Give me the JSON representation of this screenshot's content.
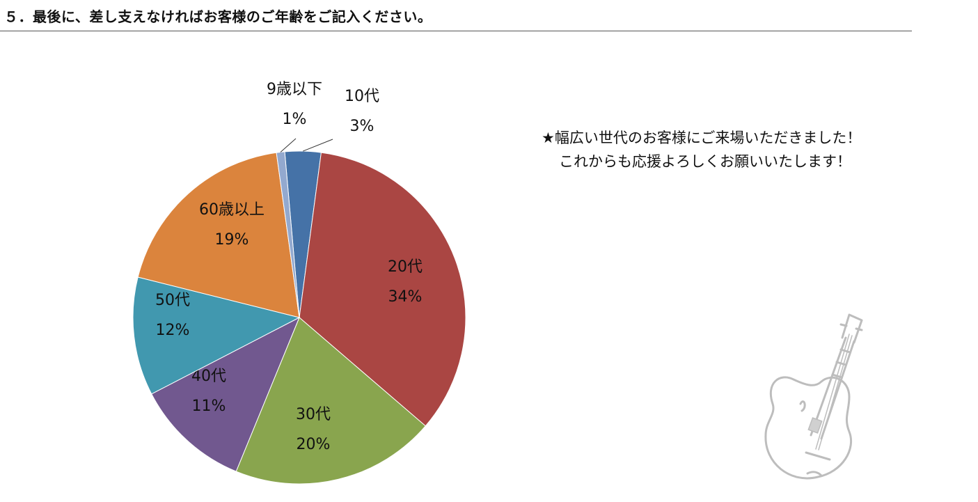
{
  "header": {
    "title": "５．最後に、差し支えなければお客様のご年齢をご記入ください。"
  },
  "note": {
    "line1": "★幅広い世代のお客様にご来場いただきました！",
    "line2": "これからも応援よろしくお願いいたします！"
  },
  "chart_data": {
    "type": "pie",
    "title": "",
    "start_angle_deg": -5.04,
    "direction": "clockwise",
    "slices": [
      {
        "label": "10代",
        "value_label": "3%",
        "value": 3.5,
        "color": "#4572A7"
      },
      {
        "label": "20代",
        "value_label": "34%",
        "value": 34.2,
        "color": "#AA4643"
      },
      {
        "label": "30代",
        "value_label": "20%",
        "value": 19.9,
        "color": "#89A54E"
      },
      {
        "label": "40代",
        "value_label": "11%",
        "value": 11.2,
        "color": "#71588F"
      },
      {
        "label": "50代",
        "value_label": "12%",
        "value": 11.5,
        "color": "#4198AF"
      },
      {
        "label": "60歳以上",
        "value_label": "19%",
        "value": 18.9,
        "color": "#DB843D"
      },
      {
        "label": "9歳以下",
        "value_label": "1%",
        "value": 0.8,
        "color": "#93A9CF"
      }
    ],
    "legend": "none"
  },
  "decoration": {
    "guitar_icon": "guitar-icon"
  }
}
